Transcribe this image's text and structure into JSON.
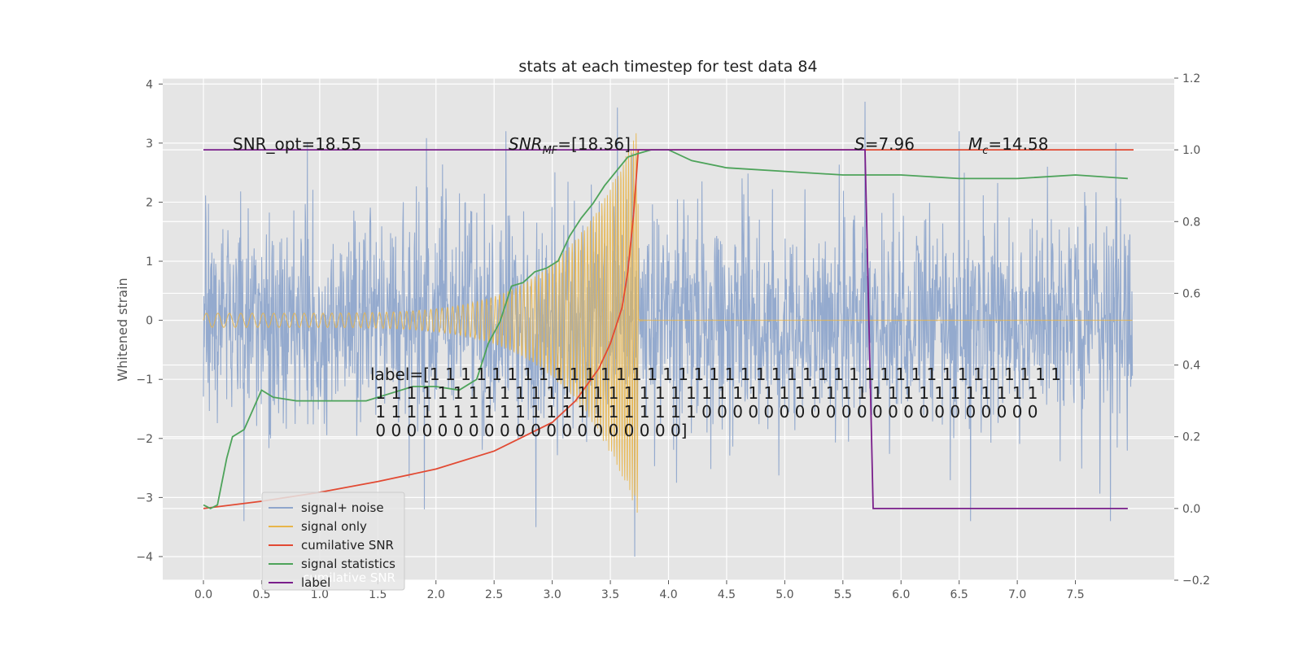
{
  "chart_data": {
    "type": "line",
    "title": "stats at each timestep for test data 84",
    "ylabel": "Whitened strain",
    "xlabel": "",
    "xlim": [
      -0.35,
      8.35
    ],
    "ylim": [
      -4.4,
      4.1
    ],
    "ylim_right": [
      -0.2,
      1.2
    ],
    "xticks": [
      "0.0",
      "0.5",
      "1.0",
      "1.5",
      "2.0",
      "2.5",
      "3.0",
      "3.5",
      "4.0",
      "4.5",
      "5.0",
      "5.5",
      "6.0",
      "6.5",
      "7.0",
      "7.5"
    ],
    "yticks_left": [
      "−4",
      "−3",
      "−2",
      "−1",
      "0",
      "1",
      "2",
      "3",
      "4"
    ],
    "yticks_right": [
      "−0.2",
      "0.0",
      "0.2",
      "0.4",
      "0.6",
      "0.8",
      "1.0",
      "1.2"
    ],
    "grid": true,
    "legend_position": "lower-left",
    "annotations": {
      "snr_opt": "SNR_opt=18.55",
      "snr_mf_base": "SNR",
      "snr_mf_sub": "MF",
      "snr_mf_value": "=[18.36]",
      "s_sym": "S",
      "s_value": "=7.96",
      "mc_sym": "M",
      "mc_sub": "c",
      "mc_value": "=14.58",
      "label_lines": [
        "label=[1 1 1 1 1 1 1 1 1 1 1 1 1 1 1 1 1 1 1 1 1 1 1 1 1 1 1 1 1 1 1 1 1 1 1 1 1 1 1 1 1",
        " 1 1 1 1 1 1 1 1 1 1 1 1 1 1 1 1 1 1 1 1 1 1 1 1 1 1 1 1 1 1 1 1 1 1 1 1 1 1 1 1 1 1 1",
        " 1 1 1 1 1 1 1 1 1 1 1 1 1 1 1 1 1 1 1 1 1 0 0 0 0 0 0 0 0 0 0 0 0 0 0 0 0 0 0 0 0 0 0",
        " 0 0 0 0 0 0 0 0 0 0 0 0 0 0 0 0 0 0 0 0]"
      ],
      "ghost_text": "cumilative SNR"
    },
    "series": [
      {
        "name": "signal+ noise",
        "color": "#8fa6cc",
        "axis": "left",
        "x_range": [
          0.0,
          7.99
        ],
        "envelope_typical": [
          -2.0,
          2.0
        ],
        "peaks_high": [
          [
            3.56,
            3.6
          ],
          [
            5.69,
            3.7
          ],
          [
            6.5,
            3.2
          ],
          [
            7.85,
            3.0
          ],
          [
            2.6,
            3.2
          ]
        ],
        "peaks_low": [
          [
            3.71,
            -4.0
          ],
          [
            2.86,
            -3.5
          ],
          [
            6.6,
            -3.4
          ],
          [
            7.8,
            -3.4
          ],
          [
            0.35,
            -3.4
          ],
          [
            1.9,
            -3.2
          ]
        ]
      },
      {
        "name": "signal only",
        "color": "#e8b54a",
        "axis": "left",
        "chirp": {
          "t_start": 0.0,
          "t_merge": 3.74,
          "t_end": 7.99,
          "amp_start": 0.12,
          "amp_peak": 3.3,
          "f_start": 10.0,
          "f_end": 35.0
        }
      },
      {
        "name": "cumilative SNR",
        "color": "#e24a33",
        "axis": "right",
        "x": [
          0.0,
          0.5,
          1.0,
          1.5,
          2.0,
          2.5,
          3.0,
          3.2,
          3.4,
          3.5,
          3.6,
          3.65,
          3.7,
          3.74,
          8.0
        ],
        "y": [
          0.0,
          0.02,
          0.045,
          0.075,
          0.11,
          0.16,
          0.24,
          0.3,
          0.39,
          0.46,
          0.56,
          0.66,
          0.82,
          1.0,
          1.0
        ]
      },
      {
        "name": "signal statistics",
        "color": "#4da35a",
        "axis": "right",
        "x": [
          0.0,
          0.06,
          0.12,
          0.2,
          0.25,
          0.35,
          0.5,
          0.6,
          0.8,
          1.0,
          1.2,
          1.4,
          1.6,
          1.8,
          2.0,
          2.2,
          2.35,
          2.45,
          2.55,
          2.65,
          2.75,
          2.85,
          2.95,
          3.05,
          3.15,
          3.25,
          3.35,
          3.45,
          3.55,
          3.65,
          3.74,
          3.85,
          4.0,
          4.2,
          4.5,
          5.0,
          5.5,
          6.0,
          6.5,
          7.0,
          7.5,
          7.95
        ],
        "y": [
          0.01,
          0.0,
          0.01,
          0.14,
          0.2,
          0.22,
          0.33,
          0.31,
          0.3,
          0.3,
          0.3,
          0.3,
          0.32,
          0.34,
          0.34,
          0.33,
          0.36,
          0.46,
          0.52,
          0.62,
          0.63,
          0.66,
          0.67,
          0.69,
          0.76,
          0.81,
          0.85,
          0.9,
          0.94,
          0.98,
          0.99,
          1.0,
          1.0,
          0.97,
          0.95,
          0.94,
          0.93,
          0.93,
          0.92,
          0.92,
          0.93,
          0.92
        ]
      },
      {
        "name": "label",
        "color": "#7a1f8b",
        "axis": "right",
        "x": [
          0.0,
          5.69,
          5.76,
          7.95
        ],
        "y": [
          1.0,
          1.0,
          0.0,
          0.0
        ]
      }
    ]
  }
}
